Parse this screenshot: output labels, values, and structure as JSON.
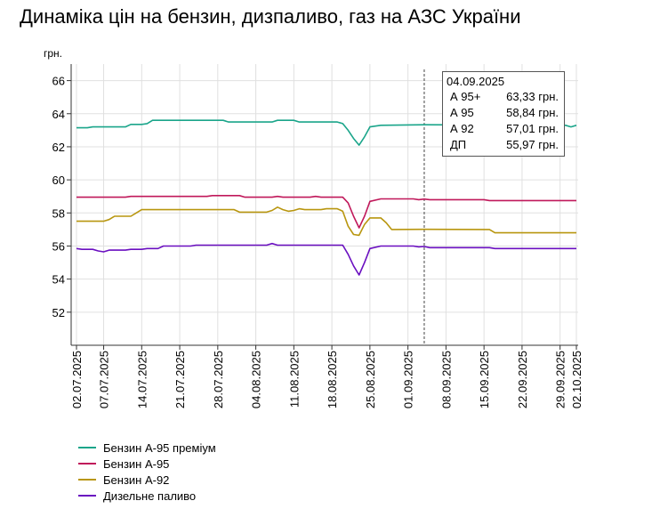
{
  "title": "Динаміка цін на бензин, дизпаливо, газ на АЗС України",
  "tooltip": {
    "date": "04.09.2025",
    "rows": [
      {
        "label": "А 95+",
        "value": "63,33 грн."
      },
      {
        "label": "А 95",
        "value": "58,84 грн."
      },
      {
        "label": "А 92",
        "value": "57,01 грн."
      },
      {
        "label": "ДП",
        "value": "55,97 грн."
      }
    ]
  },
  "chart_data": {
    "type": "line",
    "ylabel": "грн.",
    "ylim": [
      50,
      67
    ],
    "yticks": [
      52,
      54,
      56,
      58,
      60,
      62,
      64,
      66
    ],
    "xlim": [
      "2025-07-02",
      "2025-10-02"
    ],
    "xticks": [
      "02.07.2025",
      "07.07.2025",
      "14.07.2025",
      "21.07.2025",
      "28.07.2025",
      "04.08.2025",
      "11.08.2025",
      "18.08.2025",
      "25.08.2025",
      "01.09.2025",
      "08.09.2025",
      "15.09.2025",
      "22.09.2025",
      "29.09.2025",
      "02.10.2025"
    ],
    "xtick_dates": [
      "2025-07-02",
      "2025-07-07",
      "2025-07-14",
      "2025-07-21",
      "2025-07-28",
      "2025-08-04",
      "2025-08-11",
      "2025-08-18",
      "2025-08-25",
      "2025-09-01",
      "2025-09-08",
      "2025-09-15",
      "2025-09-22",
      "2025-09-29",
      "2025-10-02"
    ],
    "vertical_marker": "2025-09-04",
    "grid": true,
    "legend_position": "bottom-left",
    "series": [
      {
        "name": "Бензин А-95 преміум",
        "color": "#1aa58a",
        "points": [
          [
            "2025-07-02",
            63.15
          ],
          [
            "2025-07-04",
            63.15
          ],
          [
            "2025-07-05",
            63.2
          ],
          [
            "2025-07-11",
            63.2
          ],
          [
            "2025-07-12",
            63.35
          ],
          [
            "2025-07-14",
            63.35
          ],
          [
            "2025-07-15",
            63.4
          ],
          [
            "2025-07-16",
            63.6
          ],
          [
            "2025-07-29",
            63.6
          ],
          [
            "2025-07-30",
            63.5
          ],
          [
            "2025-08-07",
            63.5
          ],
          [
            "2025-08-08",
            63.6
          ],
          [
            "2025-08-11",
            63.6
          ],
          [
            "2025-08-12",
            63.5
          ],
          [
            "2025-08-19",
            63.5
          ],
          [
            "2025-08-20",
            63.4
          ],
          [
            "2025-08-21",
            63.0
          ],
          [
            "2025-08-22",
            62.5
          ],
          [
            "2025-08-23",
            62.1
          ],
          [
            "2025-08-24",
            62.6
          ],
          [
            "2025-08-25",
            63.2
          ],
          [
            "2025-08-27",
            63.3
          ],
          [
            "2025-09-04",
            63.33
          ],
          [
            "2025-09-30",
            63.3
          ],
          [
            "2025-10-01",
            63.2
          ],
          [
            "2025-10-02",
            63.3
          ]
        ]
      },
      {
        "name": "Бензин А-95",
        "color": "#c0185a",
        "points": [
          [
            "2025-07-02",
            58.95
          ],
          [
            "2025-07-11",
            58.95
          ],
          [
            "2025-07-12",
            59.0
          ],
          [
            "2025-07-26",
            59.0
          ],
          [
            "2025-07-27",
            59.05
          ],
          [
            "2025-08-01",
            59.05
          ],
          [
            "2025-08-02",
            58.95
          ],
          [
            "2025-08-07",
            58.95
          ],
          [
            "2025-08-08",
            59.0
          ],
          [
            "2025-08-09",
            58.95
          ],
          [
            "2025-08-14",
            58.95
          ],
          [
            "2025-08-15",
            59.0
          ],
          [
            "2025-08-16",
            58.95
          ],
          [
            "2025-08-20",
            58.95
          ],
          [
            "2025-08-21",
            58.6
          ],
          [
            "2025-08-22",
            57.8
          ],
          [
            "2025-08-23",
            57.1
          ],
          [
            "2025-08-24",
            57.8
          ],
          [
            "2025-08-25",
            58.7
          ],
          [
            "2025-08-27",
            58.85
          ],
          [
            "2025-09-02",
            58.85
          ],
          [
            "2025-09-03",
            58.8
          ],
          [
            "2025-09-04",
            58.84
          ],
          [
            "2025-09-05",
            58.8
          ],
          [
            "2025-09-15",
            58.8
          ],
          [
            "2025-09-16",
            58.75
          ],
          [
            "2025-10-02",
            58.75
          ]
        ]
      },
      {
        "name": "Бензин А-92",
        "color": "#b8960f",
        "points": [
          [
            "2025-07-02",
            57.5
          ],
          [
            "2025-07-07",
            57.5
          ],
          [
            "2025-07-08",
            57.6
          ],
          [
            "2025-07-09",
            57.8
          ],
          [
            "2025-07-12",
            57.8
          ],
          [
            "2025-07-13",
            58.0
          ],
          [
            "2025-07-14",
            58.2
          ],
          [
            "2025-07-31",
            58.2
          ],
          [
            "2025-08-01",
            58.05
          ],
          [
            "2025-08-06",
            58.05
          ],
          [
            "2025-08-07",
            58.15
          ],
          [
            "2025-08-08",
            58.35
          ],
          [
            "2025-08-09",
            58.2
          ],
          [
            "2025-08-10",
            58.1
          ],
          [
            "2025-08-11",
            58.15
          ],
          [
            "2025-08-12",
            58.25
          ],
          [
            "2025-08-13",
            58.2
          ],
          [
            "2025-08-16",
            58.2
          ],
          [
            "2025-08-17",
            58.25
          ],
          [
            "2025-08-19",
            58.25
          ],
          [
            "2025-08-20",
            58.1
          ],
          [
            "2025-08-21",
            57.2
          ],
          [
            "2025-08-22",
            56.7
          ],
          [
            "2025-08-23",
            56.65
          ],
          [
            "2025-08-24",
            57.3
          ],
          [
            "2025-08-25",
            57.7
          ],
          [
            "2025-08-27",
            57.7
          ],
          [
            "2025-08-28",
            57.4
          ],
          [
            "2025-08-29",
            57.0
          ],
          [
            "2025-09-04",
            57.01
          ],
          [
            "2025-09-16",
            57.0
          ],
          [
            "2025-09-17",
            56.8
          ],
          [
            "2025-10-02",
            56.8
          ]
        ]
      },
      {
        "name": "Дизельне паливо",
        "color": "#6a0fc0",
        "points": [
          [
            "2025-07-02",
            55.85
          ],
          [
            "2025-07-03",
            55.8
          ],
          [
            "2025-07-05",
            55.8
          ],
          [
            "2025-07-06",
            55.7
          ],
          [
            "2025-07-07",
            55.65
          ],
          [
            "2025-07-08",
            55.75
          ],
          [
            "2025-07-11",
            55.75
          ],
          [
            "2025-07-12",
            55.8
          ],
          [
            "2025-07-14",
            55.8
          ],
          [
            "2025-07-15",
            55.85
          ],
          [
            "2025-07-17",
            55.85
          ],
          [
            "2025-07-18",
            56.0
          ],
          [
            "2025-07-23",
            56.0
          ],
          [
            "2025-07-24",
            56.05
          ],
          [
            "2025-08-06",
            56.05
          ],
          [
            "2025-08-07",
            56.15
          ],
          [
            "2025-08-08",
            56.05
          ],
          [
            "2025-08-20",
            56.05
          ],
          [
            "2025-08-21",
            55.5
          ],
          [
            "2025-08-22",
            54.8
          ],
          [
            "2025-08-23",
            54.25
          ],
          [
            "2025-08-24",
            55.0
          ],
          [
            "2025-08-25",
            55.85
          ],
          [
            "2025-08-27",
            56.0
          ],
          [
            "2025-09-02",
            56.0
          ],
          [
            "2025-09-03",
            55.95
          ],
          [
            "2025-09-04",
            55.97
          ],
          [
            "2025-09-05",
            55.9
          ],
          [
            "2025-09-16",
            55.9
          ],
          [
            "2025-09-17",
            55.85
          ],
          [
            "2025-10-02",
            55.85
          ]
        ]
      }
    ]
  }
}
